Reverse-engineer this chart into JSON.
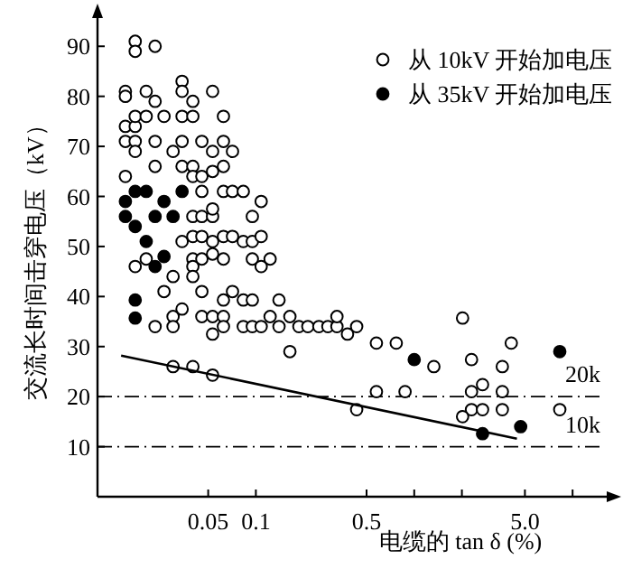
{
  "chart_data": {
    "type": "scatter",
    "xlabel": "电缆的 tan δ (%)",
    "ylabel": "交流长时间击穿电压（kV）",
    "log": "x",
    "xlim": [
      0.01,
      16
    ],
    "xticks": [
      0.05,
      0.1,
      0.5,
      {
        "value": 1,
        "label": null
      },
      {
        "value": 2,
        "label": null
      },
      {
        "value": 5,
        "label": "5.0"
      },
      {
        "value": 10,
        "label": null
      }
    ],
    "ylim": [
      0,
      96
    ],
    "yticks": [
      10,
      20,
      30,
      40,
      50,
      60,
      70,
      80,
      90
    ],
    "grid": false,
    "legend": "top right",
    "series": [
      {
        "name": "从 10kV 开始加电压",
        "color": "#ffffff",
        "marker": "circle",
        "x": [
          0.0173,
          0.0173,
          0.0231,
          0.015,
          0.015,
          0.0203,
          0.0231,
          0.0342,
          0.0342,
          0.04,
          0.0533,
          0.015,
          0.0173,
          0.0173,
          0.0203,
          0.0263,
          0.0342,
          0.04,
          0.0624,
          0.015,
          0.0173,
          0.0173,
          0.0231,
          0.03,
          0.0342,
          0.0456,
          0.0533,
          0.0624,
          0.0712,
          0.015,
          0.0231,
          0.0342,
          0.04,
          0.04,
          0.0456,
          0.0533,
          0.0624,
          0.0456,
          0.0624,
          0.0712,
          0.0833,
          0.108,
          0.04,
          0.0456,
          0.0533,
          0.0533,
          0.095,
          0.0342,
          0.04,
          0.0456,
          0.0533,
          0.0624,
          0.0712,
          0.0833,
          0.095,
          0.108,
          0.0173,
          0.0203,
          0.03,
          0.04,
          0.04,
          0.04,
          0.0456,
          0.0533,
          0.0624,
          0.095,
          0.108,
          0.123,
          0.0263,
          0.0456,
          0.0712,
          0.0833,
          0.095,
          0.14,
          0.0624,
          0.0342,
          0.0231,
          0.03,
          0.03,
          0.0456,
          0.0533,
          0.0533,
          0.0624,
          0.0624,
          0.0833,
          0.095,
          0.108,
          0.123,
          0.14,
          0.164,
          0.164,
          0.187,
          0.213,
          0.25,
          0.03,
          0.04,
          0.0533,
          0.285,
          0.325,
          0.325,
          0.379,
          0.433,
          0.577,
          0.77,
          1.33,
          2.02,
          2.3,
          2.7,
          3.6,
          4.1,
          0.577,
          0.875,
          2.3,
          3.6,
          0.433,
          2.3,
          2.7,
          3.6,
          8.3,
          2.02
        ],
        "values": [
          91,
          89,
          90,
          81,
          80,
          81,
          79,
          83,
          81,
          79,
          81,
          74,
          74,
          76,
          76,
          76,
          76,
          76,
          76,
          71,
          71,
          69,
          71,
          69,
          71,
          71,
          69,
          71,
          69,
          64,
          66,
          66,
          66,
          64,
          64,
          65,
          66,
          61,
          61,
          61,
          61,
          59,
          56,
          56,
          56,
          57.5,
          56,
          51,
          52,
          52,
          51,
          52,
          52,
          51,
          51,
          52,
          46,
          47.5,
          44,
          47.5,
          46,
          44,
          47.5,
          48.5,
          47.5,
          47.5,
          46,
          47.5,
          41,
          41,
          41,
          39.3,
          39.3,
          39.3,
          39.3,
          37.5,
          34,
          36,
          34,
          36,
          36,
          32.5,
          36,
          34,
          34,
          34,
          34,
          36,
          34,
          36,
          29,
          34,
          34,
          34,
          26,
          26,
          24.3,
          34,
          34,
          36,
          32.5,
          34,
          30.7,
          30.7,
          26,
          35.7,
          27.4,
          22.4,
          26,
          30.7,
          21,
          21,
          21,
          21,
          17.4,
          17.4,
          17.4,
          17.4,
          17.4,
          16
        ]
      },
      {
        "name": "从 35kV 开始加电压",
        "color": "#000000",
        "marker": "circle",
        "x": [
          0.015,
          0.0173,
          0.0203,
          0.0263,
          0.0342,
          0.015,
          0.0173,
          0.0231,
          0.03,
          0.0203,
          0.0263,
          0.0231,
          0.0173,
          0.0173,
          1.0,
          8.3,
          2.7,
          4.7
        ],
        "values": [
          59,
          61,
          61,
          59,
          61,
          56,
          54,
          56,
          56,
          51,
          48,
          46,
          39.3,
          35.7,
          27.4,
          29,
          12.6,
          14
        ]
      },
      {
        "type": "line",
        "color": "#000000",
        "x": [
          0.0141,
          4.45
        ],
        "values": [
          28.2,
          11.6
        ]
      }
    ],
    "ref_lines": [
      {
        "axis": "y",
        "value": 20,
        "label": "20k",
        "line_style": "dashdot"
      },
      {
        "axis": "y",
        "value": 10,
        "label": "10k",
        "line_style": "dashdot"
      }
    ]
  }
}
